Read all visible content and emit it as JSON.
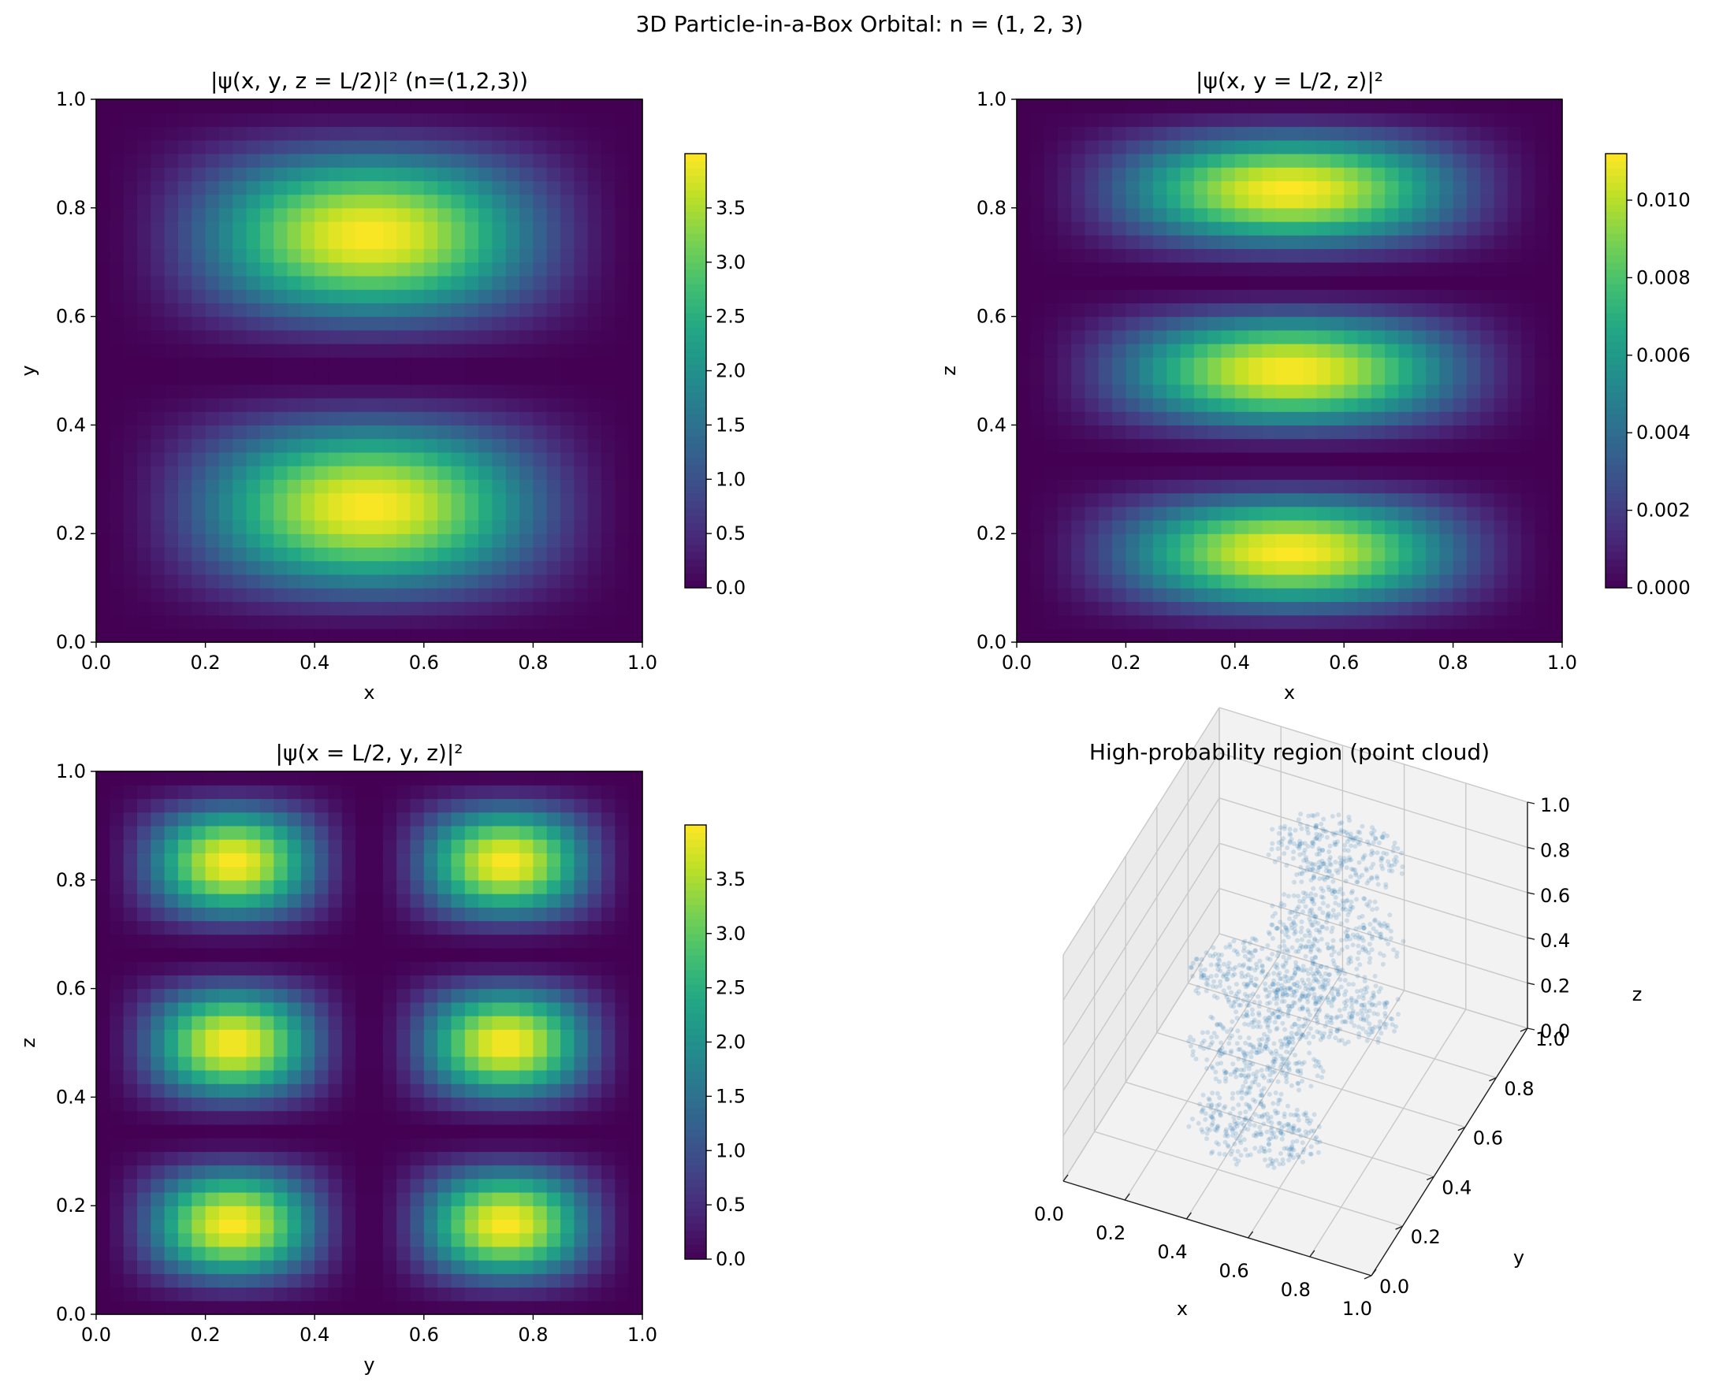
{
  "figure": {
    "suptitle": "3D Particle-in-a-Box Orbital: n = (1, 2, 3)"
  },
  "chart_data": [
    {
      "type": "heatmap",
      "title": "|ψ(x, y, z = L/2)|²  (n=(1,2,3))",
      "xlabel": "x",
      "ylabel": "y",
      "xlim": [
        0,
        1
      ],
      "ylim": [
        0,
        1
      ],
      "xticks": [
        "0.0",
        "0.2",
        "0.4",
        "0.6",
        "0.8",
        "1.0"
      ],
      "yticks": [
        "0.0",
        "0.2",
        "0.4",
        "0.6",
        "0.8",
        "1.0"
      ],
      "grid_size": 40,
      "density_formula": {
        "kx": 1,
        "ky": 2,
        "peak": 4.0
      },
      "colormap": "viridis",
      "colorbar": {
        "min": 0.0,
        "max": 4.0,
        "ticks": [
          "0.0",
          "0.5",
          "1.0",
          "1.5",
          "2.0",
          "2.5",
          "3.0",
          "3.5"
        ]
      }
    },
    {
      "type": "heatmap",
      "title": "|ψ(x, y = L/2, z)|²",
      "xlabel": "x",
      "ylabel": "z",
      "xlim": [
        0,
        1
      ],
      "ylim": [
        0,
        1
      ],
      "xticks": [
        "0.0",
        "0.2",
        "0.4",
        "0.6",
        "0.8",
        "1.0"
      ],
      "yticks": [
        "0.0",
        "0.2",
        "0.4",
        "0.6",
        "0.8",
        "1.0"
      ],
      "grid_size": 40,
      "density_formula": {
        "kx": 1,
        "ky": 3,
        "peak": 0.0112
      },
      "colormap": "viridis",
      "colorbar": {
        "min": 0.0,
        "max": 0.0112,
        "ticks": [
          "0.000",
          "0.002",
          "0.004",
          "0.006",
          "0.008",
          "0.010"
        ]
      }
    },
    {
      "type": "heatmap",
      "title": "|ψ(x = L/2, y, z)|²",
      "xlabel": "y",
      "ylabel": "z",
      "xlim": [
        0,
        1
      ],
      "ylim": [
        0,
        1
      ],
      "xticks": [
        "0.0",
        "0.2",
        "0.4",
        "0.6",
        "0.8",
        "1.0"
      ],
      "yticks": [
        "0.0",
        "0.2",
        "0.4",
        "0.6",
        "0.8",
        "1.0"
      ],
      "grid_size": 40,
      "density_formula": {
        "kx": 2,
        "ky": 3,
        "peak": 4.0
      },
      "colormap": "viridis",
      "colorbar": {
        "min": 0.0,
        "max": 4.0,
        "ticks": [
          "0.0",
          "0.5",
          "1.0",
          "1.5",
          "2.0",
          "2.5",
          "3.0",
          "3.5"
        ]
      }
    },
    {
      "type": "scatter",
      "projection": "3d",
      "title": "High-probability region (point cloud)",
      "xlabel": "x",
      "ylabel": "y",
      "zlabel": "z",
      "xlim": [
        0,
        1
      ],
      "ylim": [
        0,
        1
      ],
      "zlim": [
        0,
        1
      ],
      "xticks": [
        "0.0",
        "0.2",
        "0.4",
        "0.6",
        "0.8",
        "1.0"
      ],
      "yticks": [
        "0.0",
        "0.2",
        "0.4",
        "0.6",
        "0.8",
        "1.0"
      ],
      "zticks": [
        "0.0",
        "0.2",
        "0.4",
        "0.6",
        "0.8",
        "1.0"
      ],
      "point_color": "#1f77b4",
      "clusters": [
        {
          "x": 0.5,
          "y": 0.25,
          "z": 0.1667
        },
        {
          "x": 0.5,
          "y": 0.25,
          "z": 0.5
        },
        {
          "x": 0.5,
          "y": 0.25,
          "z": 0.8333
        },
        {
          "x": 0.5,
          "y": 0.75,
          "z": 0.1667
        },
        {
          "x": 0.5,
          "y": 0.75,
          "z": 0.5
        },
        {
          "x": 0.5,
          "y": 0.75,
          "z": 0.8333
        }
      ]
    }
  ]
}
